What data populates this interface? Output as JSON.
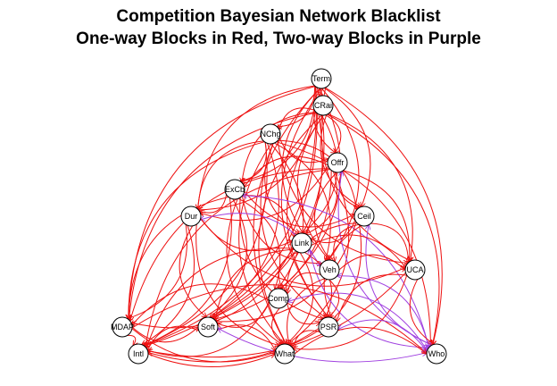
{
  "title": {
    "line1": "Competition Bayesian Network Blacklist",
    "line2": "One-way Blocks in Red, Two-way Blocks in Purple"
  },
  "colors": {
    "one_way": "#ee1111",
    "two_way": "#a040e0",
    "node_fill": "#ffffff",
    "node_stroke": "#000000"
  },
  "nodes": [
    {
      "id": "Term",
      "label": "Term"
    },
    {
      "id": "CRai",
      "label": "CRai"
    },
    {
      "id": "NChg",
      "label": "NChg"
    },
    {
      "id": "Offr",
      "label": "Offr"
    },
    {
      "id": "ExCb",
      "label": "ExCb"
    },
    {
      "id": "Dur",
      "label": "Dur"
    },
    {
      "id": "Ceil",
      "label": "Ceil"
    },
    {
      "id": "Link",
      "label": "Link"
    },
    {
      "id": "Veh",
      "label": "Veh"
    },
    {
      "id": "UCA",
      "label": "UCA"
    },
    {
      "id": "Comp",
      "label": "Comp"
    },
    {
      "id": "MDAP",
      "label": "MDAP"
    },
    {
      "id": "Soft",
      "label": "Soft"
    },
    {
      "id": "PSR",
      "label": "PSR"
    },
    {
      "id": "Intl",
      "label": "Intl"
    },
    {
      "id": "What",
      "label": "What"
    },
    {
      "id": "Who",
      "label": "Who"
    }
  ],
  "edges": [
    {
      "from": "Term",
      "to": "CRai",
      "type": "one_way"
    },
    {
      "from": "Term",
      "to": "NChg",
      "type": "one_way"
    },
    {
      "from": "Term",
      "to": "Offr",
      "type": "one_way"
    },
    {
      "from": "Term",
      "to": "ExCb",
      "type": "one_way"
    },
    {
      "from": "Term",
      "to": "Dur",
      "type": "one_way"
    },
    {
      "from": "Term",
      "to": "Ceil",
      "type": "one_way"
    },
    {
      "from": "Term",
      "to": "Link",
      "type": "one_way"
    },
    {
      "from": "Term",
      "to": "Veh",
      "type": "one_way"
    },
    {
      "from": "Term",
      "to": "UCA",
      "type": "one_way"
    },
    {
      "from": "Term",
      "to": "Comp",
      "type": "one_way"
    },
    {
      "from": "Term",
      "to": "MDAP",
      "type": "one_way"
    },
    {
      "from": "Term",
      "to": "Soft",
      "type": "one_way"
    },
    {
      "from": "Term",
      "to": "PSR",
      "type": "one_way"
    },
    {
      "from": "Term",
      "to": "Intl",
      "type": "one_way"
    },
    {
      "from": "Term",
      "to": "What",
      "type": "one_way"
    },
    {
      "from": "Term",
      "to": "Who",
      "type": "one_way"
    },
    {
      "from": "CRai",
      "to": "NChg",
      "type": "one_way"
    },
    {
      "from": "CRai",
      "to": "Offr",
      "type": "one_way"
    },
    {
      "from": "CRai",
      "to": "ExCb",
      "type": "one_way"
    },
    {
      "from": "CRai",
      "to": "Dur",
      "type": "one_way"
    },
    {
      "from": "CRai",
      "to": "Ceil",
      "type": "one_way"
    },
    {
      "from": "CRai",
      "to": "Link",
      "type": "one_way"
    },
    {
      "from": "CRai",
      "to": "Veh",
      "type": "one_way"
    },
    {
      "from": "CRai",
      "to": "UCA",
      "type": "one_way"
    },
    {
      "from": "CRai",
      "to": "MDAP",
      "type": "one_way"
    },
    {
      "from": "CRai",
      "to": "Soft",
      "type": "one_way"
    },
    {
      "from": "CRai",
      "to": "PSR",
      "type": "one_way"
    },
    {
      "from": "CRai",
      "to": "Intl",
      "type": "one_way"
    },
    {
      "from": "CRai",
      "to": "What",
      "type": "one_way"
    },
    {
      "from": "CRai",
      "to": "Who",
      "type": "one_way"
    },
    {
      "from": "NChg",
      "to": "Offr",
      "type": "one_way"
    },
    {
      "from": "NChg",
      "to": "ExCb",
      "type": "one_way"
    },
    {
      "from": "NChg",
      "to": "Dur",
      "type": "one_way"
    },
    {
      "from": "NChg",
      "to": "Ceil",
      "type": "one_way"
    },
    {
      "from": "NChg",
      "to": "Link",
      "type": "one_way"
    },
    {
      "from": "NChg",
      "to": "Veh",
      "type": "one_way"
    },
    {
      "from": "NChg",
      "to": "UCA",
      "type": "one_way"
    },
    {
      "from": "NChg",
      "to": "Comp",
      "type": "one_way"
    },
    {
      "from": "NChg",
      "to": "MDAP",
      "type": "one_way"
    },
    {
      "from": "NChg",
      "to": "Soft",
      "type": "one_way"
    },
    {
      "from": "NChg",
      "to": "PSR",
      "type": "one_way"
    },
    {
      "from": "NChg",
      "to": "Intl",
      "type": "one_way"
    },
    {
      "from": "NChg",
      "to": "What",
      "type": "one_way"
    },
    {
      "from": "NChg",
      "to": "Who",
      "type": "one_way"
    },
    {
      "from": "Offr",
      "to": "ExCb",
      "type": "one_way"
    },
    {
      "from": "Offr",
      "to": "Dur",
      "type": "one_way"
    },
    {
      "from": "Offr",
      "to": "Ceil",
      "type": "one_way"
    },
    {
      "from": "Offr",
      "to": "Link",
      "type": "one_way"
    },
    {
      "from": "Offr",
      "to": "Veh",
      "type": "one_way"
    },
    {
      "from": "Offr",
      "to": "UCA",
      "type": "one_way"
    },
    {
      "from": "Offr",
      "to": "MDAP",
      "type": "one_way"
    },
    {
      "from": "Offr",
      "to": "Soft",
      "type": "one_way"
    },
    {
      "from": "Offr",
      "to": "Intl",
      "type": "one_way"
    },
    {
      "from": "Offr",
      "to": "What",
      "type": "one_way"
    },
    {
      "from": "Offr",
      "to": "Who",
      "type": "two_way"
    },
    {
      "from": "ExCb",
      "to": "Dur",
      "type": "one_way"
    },
    {
      "from": "ExCb",
      "to": "Ceil",
      "type": "one_way"
    },
    {
      "from": "ExCb",
      "to": "Link",
      "type": "one_way"
    },
    {
      "from": "ExCb",
      "to": "Veh",
      "type": "one_way"
    },
    {
      "from": "ExCb",
      "to": "Comp",
      "type": "one_way"
    },
    {
      "from": "ExCb",
      "to": "MDAP",
      "type": "one_way"
    },
    {
      "from": "ExCb",
      "to": "Soft",
      "type": "one_way"
    },
    {
      "from": "ExCb",
      "to": "PSR",
      "type": "one_way"
    },
    {
      "from": "ExCb",
      "to": "Intl",
      "type": "one_way"
    },
    {
      "from": "ExCb",
      "to": "What",
      "type": "one_way"
    },
    {
      "from": "ExCb",
      "to": "Who",
      "type": "two_way"
    },
    {
      "from": "Dur",
      "to": "Link",
      "type": "one_way"
    },
    {
      "from": "Dur",
      "to": "Veh",
      "type": "two_way"
    },
    {
      "from": "Dur",
      "to": "UCA",
      "type": "one_way"
    },
    {
      "from": "Dur",
      "to": "MDAP",
      "type": "one_way"
    },
    {
      "from": "Dur",
      "to": "Soft",
      "type": "one_way"
    },
    {
      "from": "Dur",
      "to": "Intl",
      "type": "one_way"
    },
    {
      "from": "Dur",
      "to": "What",
      "type": "one_way"
    },
    {
      "from": "Ceil",
      "to": "Link",
      "type": "one_way"
    },
    {
      "from": "Ceil",
      "to": "Veh",
      "type": "one_way"
    },
    {
      "from": "Ceil",
      "to": "UCA",
      "type": "one_way"
    },
    {
      "from": "Ceil",
      "to": "Comp",
      "type": "one_way"
    },
    {
      "from": "Ceil",
      "to": "Soft",
      "type": "one_way"
    },
    {
      "from": "Ceil",
      "to": "PSR",
      "type": "one_way"
    },
    {
      "from": "Ceil",
      "to": "What",
      "type": "one_way"
    },
    {
      "from": "Ceil",
      "to": "Who",
      "type": "two_way"
    },
    {
      "from": "Link",
      "to": "UCA",
      "type": "one_way"
    },
    {
      "from": "Link",
      "to": "Comp",
      "type": "one_way"
    },
    {
      "from": "Link",
      "to": "MDAP",
      "type": "one_way"
    },
    {
      "from": "Link",
      "to": "Soft",
      "type": "one_way"
    },
    {
      "from": "Link",
      "to": "PSR",
      "type": "one_way"
    },
    {
      "from": "Link",
      "to": "Intl",
      "type": "one_way"
    },
    {
      "from": "Link",
      "to": "What",
      "type": "one_way"
    },
    {
      "from": "Link",
      "to": "Who",
      "type": "two_way"
    },
    {
      "from": "Veh",
      "to": "UCA",
      "type": "one_way"
    },
    {
      "from": "Veh",
      "to": "Comp",
      "type": "one_way"
    },
    {
      "from": "Veh",
      "to": "PSR",
      "type": "one_way"
    },
    {
      "from": "Veh",
      "to": "What",
      "type": "one_way"
    },
    {
      "from": "Veh",
      "to": "Who",
      "type": "two_way"
    },
    {
      "from": "UCA",
      "to": "PSR",
      "type": "one_way"
    },
    {
      "from": "UCA",
      "to": "What",
      "type": "one_way"
    },
    {
      "from": "UCA",
      "to": "Who",
      "type": "one_way"
    },
    {
      "from": "UCA",
      "to": "Intl",
      "type": "one_way"
    },
    {
      "from": "Comp",
      "to": "MDAP",
      "type": "one_way"
    },
    {
      "from": "Comp",
      "to": "Soft",
      "type": "one_way"
    },
    {
      "from": "Comp",
      "to": "PSR",
      "type": "one_way"
    },
    {
      "from": "Comp",
      "to": "Intl",
      "type": "one_way"
    },
    {
      "from": "Comp",
      "to": "What",
      "type": "one_way"
    },
    {
      "from": "Comp",
      "to": "Who",
      "type": "two_way"
    },
    {
      "from": "MDAP",
      "to": "Soft",
      "type": "one_way"
    },
    {
      "from": "MDAP",
      "to": "Intl",
      "type": "one_way"
    },
    {
      "from": "MDAP",
      "to": "What",
      "type": "one_way"
    },
    {
      "from": "MDAP",
      "to": "Who",
      "type": "one_way"
    },
    {
      "from": "Soft",
      "to": "Intl",
      "type": "one_way"
    },
    {
      "from": "Soft",
      "to": "What",
      "type": "one_way"
    },
    {
      "from": "Soft",
      "to": "Who",
      "type": "two_way"
    },
    {
      "from": "PSR",
      "to": "Intl",
      "type": "one_way"
    },
    {
      "from": "PSR",
      "to": "What",
      "type": "one_way"
    },
    {
      "from": "PSR",
      "to": "Who",
      "type": "two_way"
    },
    {
      "from": "Intl",
      "to": "What",
      "type": "one_way"
    },
    {
      "from": "What",
      "to": "Who",
      "type": "one_way"
    }
  ]
}
